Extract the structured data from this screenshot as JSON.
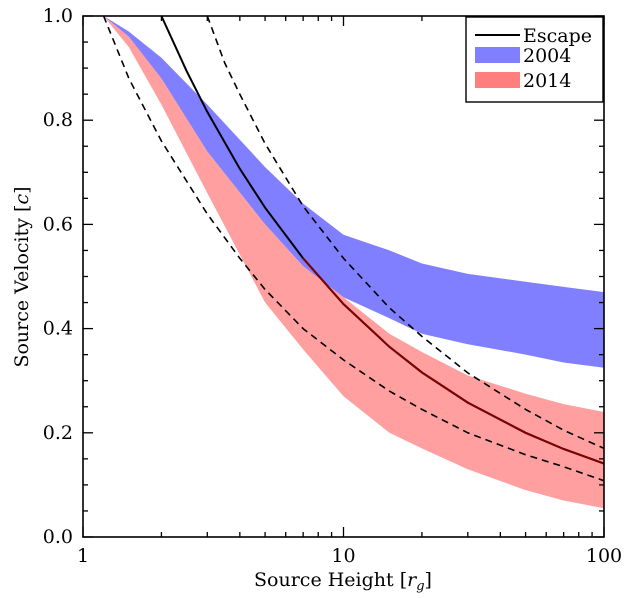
{
  "chart_data": {
    "type": "area",
    "xlabel": "Source Height [r_g]",
    "ylabel": "Source Velocity [c]",
    "xscale": "log",
    "xlim": [
      1,
      100
    ],
    "ylim": [
      0,
      1
    ],
    "x_ticks": [
      {
        "value": 1,
        "label": "1"
      },
      {
        "value": 10,
        "label": "10"
      },
      {
        "value": 100,
        "label": "100"
      }
    ],
    "y_ticks": [
      {
        "value": 0.0,
        "label": "0.0"
      },
      {
        "value": 0.2,
        "label": "0.2"
      },
      {
        "value": 0.4,
        "label": "0.4"
      },
      {
        "value": 0.6,
        "label": "0.6"
      },
      {
        "value": 0.8,
        "label": "0.8"
      },
      {
        "value": 1.0,
        "label": "1.0"
      }
    ],
    "legend_position": "top-right",
    "bands": [
      {
        "name": "2004",
        "color": "#7f7fff",
        "x": [
          1.2,
          1.5,
          2,
          3,
          5,
          7,
          10,
          15,
          20,
          30,
          50,
          70,
          100
        ],
        "lower": [
          1.0,
          0.96,
          0.88,
          0.74,
          0.6,
          0.52,
          0.46,
          0.42,
          0.39,
          0.37,
          0.35,
          0.335,
          0.325
        ],
        "upper": [
          1.0,
          0.97,
          0.92,
          0.83,
          0.71,
          0.64,
          0.58,
          0.55,
          0.525,
          0.505,
          0.49,
          0.48,
          0.47
        ]
      },
      {
        "name": "2014",
        "color": "#ff7f7f",
        "x": [
          1.2,
          1.5,
          2,
          3,
          5,
          7,
          10,
          15,
          20,
          30,
          50,
          70,
          100
        ],
        "lower": [
          1.0,
          0.94,
          0.83,
          0.66,
          0.45,
          0.36,
          0.27,
          0.2,
          0.17,
          0.13,
          0.09,
          0.07,
          0.055
        ],
        "upper": [
          1.0,
          0.96,
          0.88,
          0.74,
          0.6,
          0.52,
          0.46,
          0.39,
          0.355,
          0.31,
          0.275,
          0.255,
          0.24
        ]
      }
    ],
    "escape_curve": {
      "name": "Escape",
      "color": "#000000",
      "overlap_color": "#7f0000",
      "x": [
        2.0,
        2.5,
        3,
        4,
        5,
        7,
        10,
        15,
        20,
        30,
        50,
        70,
        100
      ],
      "y": [
        1.0,
        0.894,
        0.816,
        0.707,
        0.632,
        0.535,
        0.447,
        0.365,
        0.316,
        0.258,
        0.2,
        0.169,
        0.141
      ]
    },
    "dashed_curves": [
      {
        "x": [
          1.2,
          1.5,
          2,
          3,
          4,
          5,
          7,
          10,
          15,
          20,
          30,
          50,
          70,
          100
        ],
        "y": [
          1.0,
          0.88,
          0.76,
          0.62,
          0.535,
          0.475,
          0.4,
          0.34,
          0.28,
          0.245,
          0.2,
          0.158,
          0.135,
          0.108
        ]
      },
      {
        "x": [
          3,
          3.5,
          4,
          5,
          7,
          10,
          15,
          20,
          30,
          50,
          70,
          100
        ],
        "y": [
          1.0,
          0.91,
          0.85,
          0.755,
          0.635,
          0.535,
          0.44,
          0.385,
          0.315,
          0.245,
          0.205,
          0.17
        ]
      }
    ]
  }
}
